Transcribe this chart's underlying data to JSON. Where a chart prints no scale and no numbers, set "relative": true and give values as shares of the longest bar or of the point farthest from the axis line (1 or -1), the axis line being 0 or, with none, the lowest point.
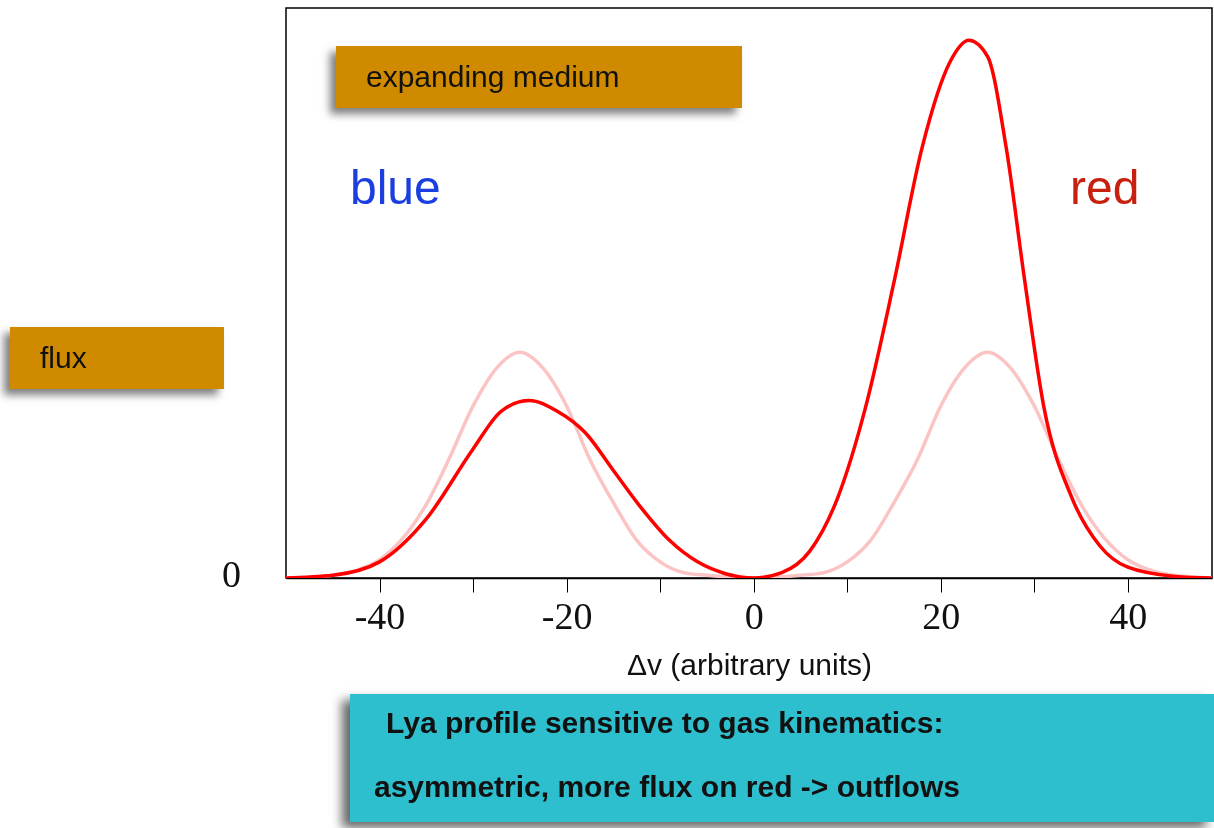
{
  "chart_data": {
    "type": "line",
    "relative": true,
    "xlabel": "Δv (arbitrary units)",
    "annotations": [
      "flux",
      "expanding medium",
      "blue",
      "red",
      "Lya profile sensitive to gas kinematics:",
      "asymmetric, more flux on red -> outflows",
      "0"
    ],
    "xlim": [
      -50,
      49
    ],
    "xticks": [
      -40,
      {
        "value": -30,
        "label": null
      },
      -20,
      {
        "value": -10,
        "label": null
      },
      0,
      {
        "value": 10,
        "label": null
      },
      20,
      {
        "value": 30,
        "label": null
      },
      40
    ],
    "grid": false,
    "marker": "none",
    "line_style": "solid",
    "series": [
      {
        "color": "#fbc4c4",
        "x": [
          -50,
          -45,
          -42.5,
          -40,
          -37.5,
          -35,
          -32.5,
          -30,
          -27.5,
          -25,
          -22.5,
          -20,
          -17.5,
          -15,
          -12.5,
          -10,
          -7.5,
          -5,
          0,
          5,
          7.5,
          10,
          12.5,
          15,
          17.5,
          20,
          22.5,
          25,
          27.5,
          30,
          32.5,
          35,
          37.5,
          40,
          42.5,
          45,
          49
        ],
        "values": [
          0,
          0.005,
          0.014,
          0.034,
          0.074,
          0.137,
          0.224,
          0.32,
          0.39,
          0.42,
          0.39,
          0.32,
          0.22,
          0.14,
          0.07,
          0.03,
          0.01,
          0.005,
          0,
          0.005,
          0.01,
          0.03,
          0.07,
          0.14,
          0.22,
          0.32,
          0.39,
          0.42,
          0.39,
          0.32,
          0.224,
          0.137,
          0.074,
          0.034,
          0.014,
          0.005,
          0
        ]
      },
      {
        "color": "#ff0000",
        "x": [
          -50,
          -45,
          -40,
          -35,
          -30,
          -27,
          -24,
          -21,
          -18,
          -15,
          -12,
          -9,
          -6,
          -3,
          0,
          3,
          6,
          9,
          12,
          15,
          18,
          21,
          23,
          25,
          27,
          29,
          31,
          34,
          37,
          40,
          45,
          49
        ],
        "values": [
          0,
          0.005,
          0.03,
          0.11,
          0.24,
          0.31,
          0.33,
          0.31,
          0.27,
          0.2,
          0.13,
          0.07,
          0.03,
          0.008,
          0,
          0.01,
          0.05,
          0.15,
          0.32,
          0.55,
          0.8,
          0.96,
          1,
          0.97,
          0.8,
          0.55,
          0.32,
          0.15,
          0.06,
          0.02,
          0.003,
          0
        ]
      }
    ]
  }
}
